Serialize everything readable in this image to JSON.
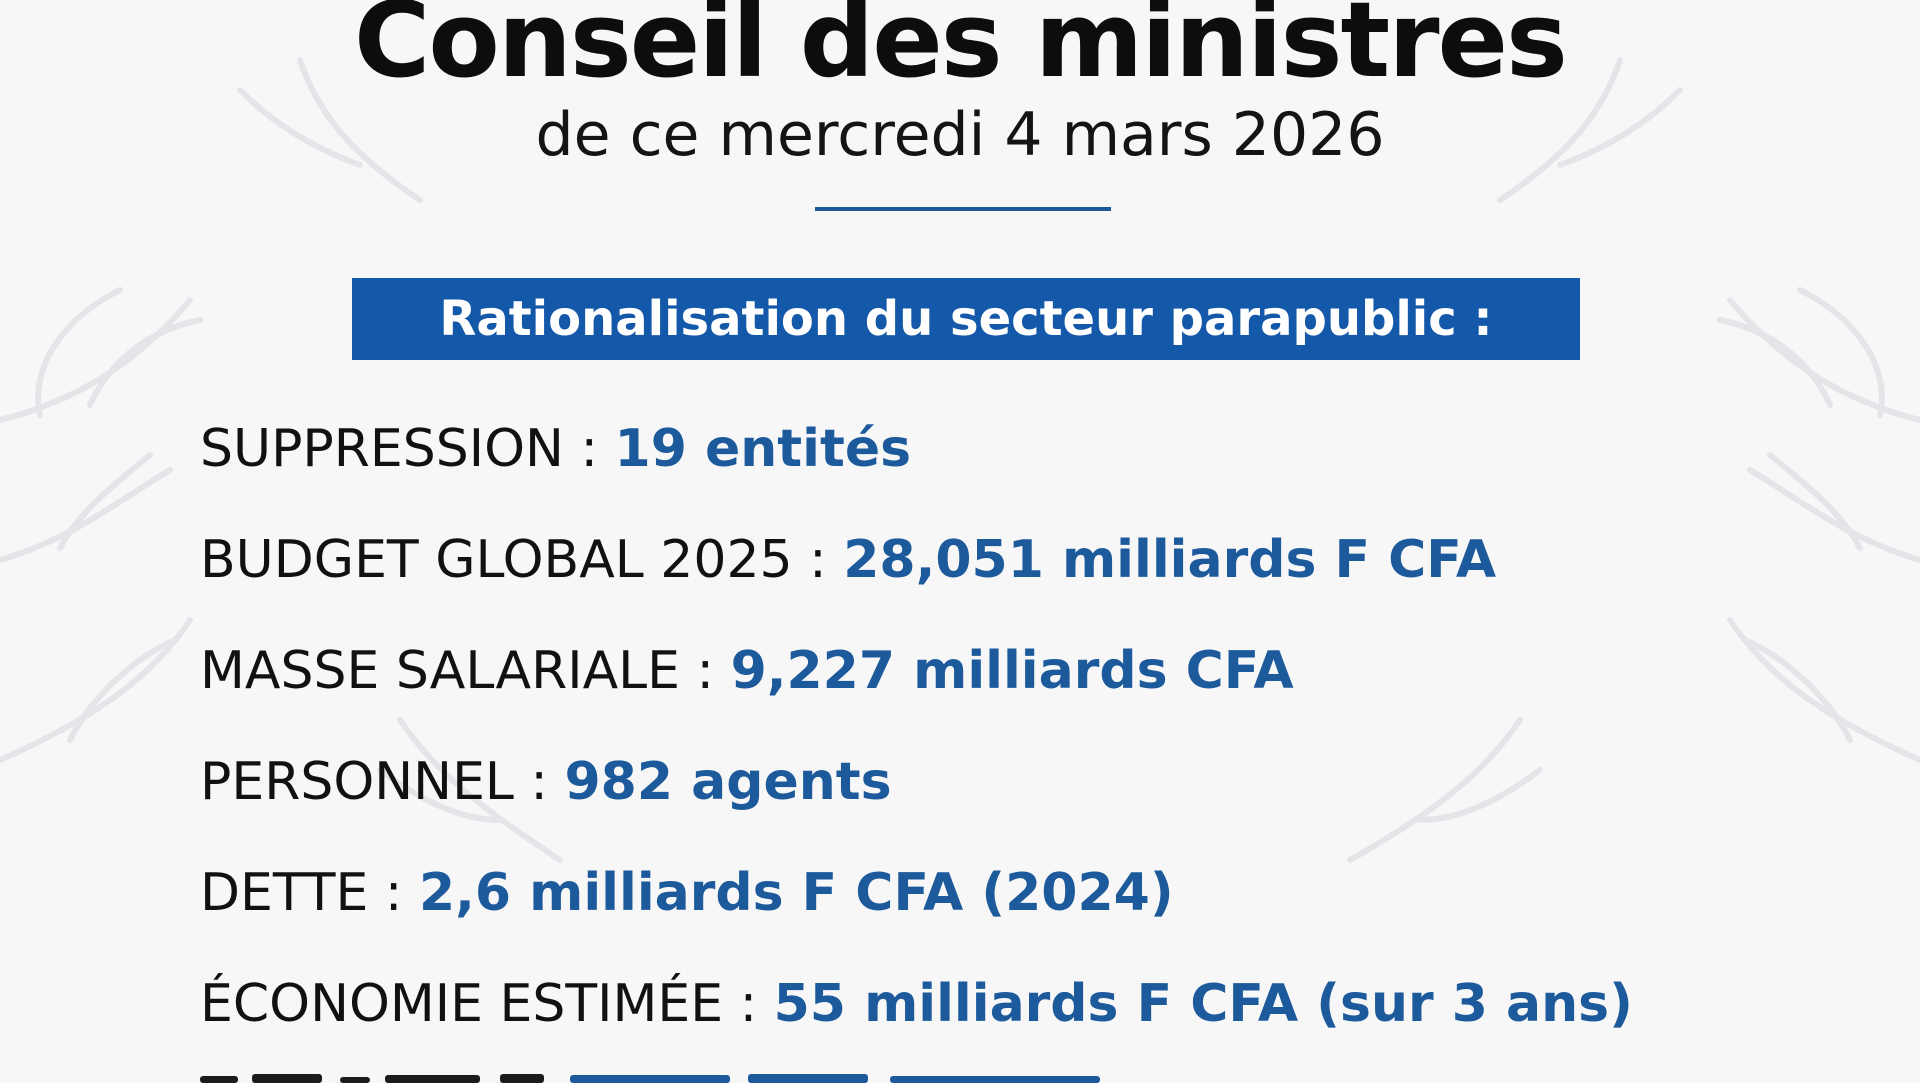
{
  "header": {
    "title": "Conseil des ministres",
    "subtitle": "de ce mercredi 4 mars 2026"
  },
  "banner": {
    "text": "Rationalisation du secteur parapublic :"
  },
  "stats": [
    {
      "label": "SUPPRESSION : ",
      "value": "19 entités"
    },
    {
      "label": "BUDGET GLOBAL 2025 : ",
      "value": "28,051 milliards F CFA"
    },
    {
      "label": "MASSE SALARIALE : ",
      "value": "9,227 milliards CFA"
    },
    {
      "label": "PERSONNEL : ",
      "value": "982 agents"
    },
    {
      "label": "DETTE : ",
      "value": "2,6 milliards F CFA (2024)"
    },
    {
      "label": "ÉCONOMIE ESTIMÉE : ",
      "value": "55 milliards F CFA (sur 3 ans)"
    }
  ],
  "colors": {
    "accent_blue": "#1d5a9b",
    "banner_blue": "#1458a9",
    "text_dark": "#111111",
    "background": "#f7f7f8"
  }
}
